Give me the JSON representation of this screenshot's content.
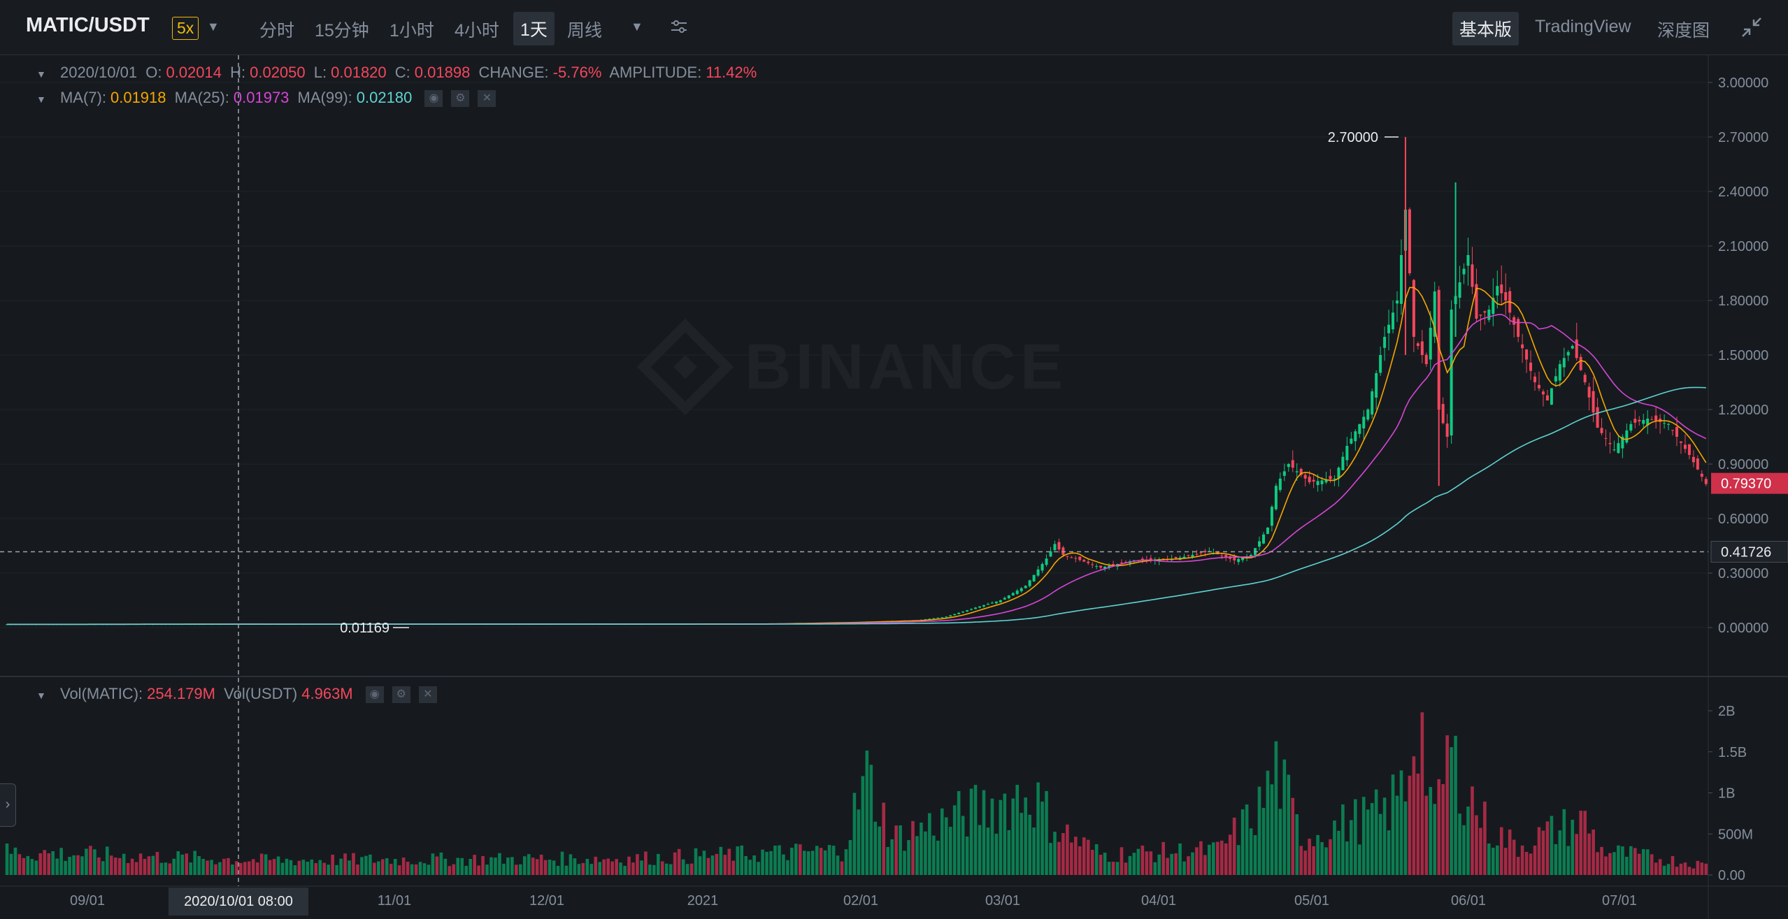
{
  "topbar": {
    "pair": "MATIC/USDT",
    "leverage": "5x",
    "intervals": [
      "分时",
      "15分钟",
      "1小时",
      "4小时",
      "1天",
      "周线"
    ],
    "active_interval": "1天",
    "views": [
      "基本版",
      "TradingView",
      "深度图"
    ],
    "active_view": "基本版"
  },
  "legend": {
    "date": "2020/10/01",
    "o_label": "O:",
    "o": "0.02014",
    "h_label": "H:",
    "h": "0.02050",
    "l_label": "L:",
    "l": "0.01820",
    "c_label": "C:",
    "c": "0.01898",
    "change_label": "CHANGE:",
    "change": "-5.76%",
    "amp_label": "AMPLITUDE:",
    "amp": "11.42%",
    "ma7_label": "MA(7):",
    "ma7": "0.01918",
    "ma25_label": "MA(25):",
    "ma25": "0.01973",
    "ma99_label": "MA(99):",
    "ma99": "0.02180",
    "vol_label": "Vol(MATIC):",
    "vol": "254.179M",
    "volu_label": "Vol(USDT)",
    "volu": "4.963M"
  },
  "watermark": "BINANCE",
  "colors": {
    "up": "#0ecb81",
    "down": "#f6465d",
    "vol_up": "#0b7d52",
    "vol_down": "#a52a45",
    "ma7": "#f7a600",
    "ma25": "#d646d6",
    "ma99": "#5fd3d3"
  },
  "chart_data": {
    "type": "candlestick",
    "price_axis": [
      "3.00000",
      "2.70000",
      "2.40000",
      "2.10000",
      "1.80000",
      "1.50000",
      "1.20000",
      "0.90000",
      "0.60000",
      "0.30000",
      "0.00000"
    ],
    "ylim": [
      0,
      3.0
    ],
    "last_price": "0.79370",
    "cursor_price": "0.41726",
    "max_label": "2.70000",
    "min_label": "0.01169",
    "volume_axis": [
      "2B",
      "1.5B",
      "1B",
      "500M",
      "0.00"
    ],
    "volume_ylim": [
      0,
      2000000000
    ],
    "x_labels": [
      "09/01",
      "11/01",
      "12/01",
      "2021",
      "02/01",
      "03/01",
      "04/01",
      "05/01",
      "06/01",
      "07/01"
    ],
    "cursor_date": "2020/10/01 08:00",
    "price_anchors": [
      [
        0,
        0.018
      ],
      [
        60,
        0.019
      ],
      [
        150,
        0.019
      ],
      [
        180,
        0.02
      ],
      [
        200,
        0.028
      ],
      [
        218,
        0.04
      ],
      [
        225,
        0.06
      ],
      [
        232,
        0.11
      ],
      [
        238,
        0.15
      ],
      [
        244,
        0.23
      ],
      [
        249,
        0.38
      ],
      [
        251,
        0.46
      ],
      [
        253,
        0.4
      ],
      [
        256,
        0.38
      ],
      [
        262,
        0.33
      ],
      [
        270,
        0.37
      ],
      [
        280,
        0.38
      ],
      [
        288,
        0.42
      ],
      [
        294,
        0.37
      ],
      [
        298,
        0.4
      ],
      [
        302,
        0.55
      ],
      [
        304,
        0.78
      ],
      [
        307,
        0.9
      ],
      [
        312,
        0.8
      ],
      [
        318,
        0.82
      ],
      [
        321,
        1.0
      ],
      [
        326,
        1.2
      ],
      [
        330,
        1.6
      ],
      [
        333,
        1.8
      ],
      [
        335,
        2.3
      ],
      [
        337,
        1.6
      ],
      [
        339,
        1.5
      ],
      [
        340,
        1.45
      ],
      [
        342,
        1.85
      ],
      [
        343,
        1.2
      ],
      [
        345,
        1.05
      ],
      [
        346,
        1.75
      ],
      [
        350,
        2.05
      ],
      [
        352,
        1.7
      ],
      [
        355,
        1.75
      ],
      [
        357,
        1.88
      ],
      [
        359,
        1.8
      ],
      [
        362,
        1.6
      ],
      [
        366,
        1.35
      ],
      [
        369,
        1.25
      ],
      [
        372,
        1.45
      ],
      [
        375,
        1.55
      ],
      [
        378,
        1.35
      ],
      [
        381,
        1.1
      ],
      [
        385,
        0.98
      ],
      [
        389,
        1.12
      ],
      [
        393,
        1.15
      ],
      [
        398,
        1.12
      ],
      [
        400,
        1.05
      ],
      [
        403,
        0.95
      ],
      [
        407,
        0.79
      ]
    ],
    "volume_anchors": [
      [
        0,
        0.28
      ],
      [
        60,
        0.18
      ],
      [
        150,
        0.2
      ],
      [
        200,
        0.3
      ],
      [
        206,
        1.2
      ],
      [
        212,
        0.45
      ],
      [
        236,
        0.85
      ],
      [
        245,
        1.0
      ],
      [
        252,
        0.55
      ],
      [
        262,
        0.25
      ],
      [
        290,
        0.3
      ],
      [
        300,
        0.8
      ],
      [
        304,
        1.3
      ],
      [
        310,
        0.45
      ],
      [
        322,
        0.65
      ],
      [
        330,
        0.75
      ],
      [
        335,
        1.1
      ],
      [
        338,
        2.05
      ],
      [
        342,
        0.6
      ],
      [
        345,
        1.5
      ],
      [
        350,
        1.0
      ],
      [
        355,
        0.55
      ],
      [
        362,
        0.35
      ],
      [
        371,
        0.55
      ],
      [
        378,
        0.65
      ],
      [
        382,
        0.3
      ],
      [
        407,
        0.12
      ]
    ]
  }
}
